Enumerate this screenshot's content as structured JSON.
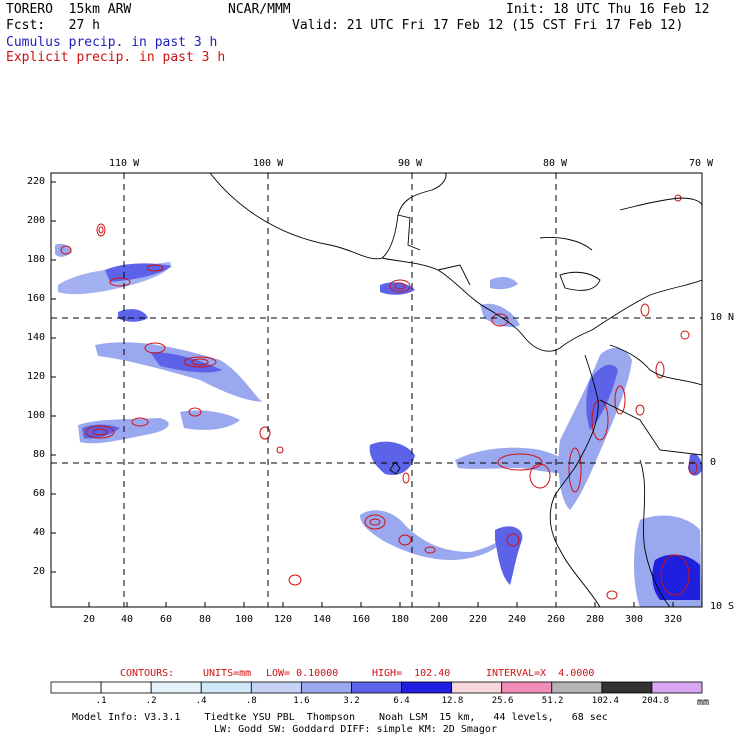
{
  "header": {
    "model": "TORERO  15km ARW",
    "org": "NCAR/MMM",
    "init": "Init: 18 UTC Thu 16 Feb 12",
    "fcst": "Fcst:   27 h",
    "valid": "Valid: 21 UTC Fri 17 Feb 12 (15 CST Fri 17 Feb 12)",
    "legend_cumulus": "Cumulus precip. in past 3 h",
    "legend_explicit": "Explicit precip. in past 3 h"
  },
  "axes": {
    "top_labels": [
      "110 W",
      "100 W",
      "90 W",
      "80 W",
      "70 W"
    ],
    "right_labels": [
      "10 N",
      "0",
      "10 S"
    ],
    "left_ticks": [
      "220",
      "200",
      "180",
      "160",
      "140",
      "120",
      "100",
      "80",
      "60",
      "40",
      "20"
    ],
    "bottom_ticks": [
      "20",
      "40",
      "60",
      "80",
      "100",
      "120",
      "140",
      "160",
      "180",
      "200",
      "220",
      "240",
      "260",
      "280",
      "300",
      "320"
    ]
  },
  "contours": {
    "label": "CONTOURS:",
    "units": "UNITS=mm",
    "low": "LOW= 0.10000",
    "high": "HIGH=  102.40",
    "interval": "INTERVAL=X  4.0000"
  },
  "colorbar": {
    "labels": [
      ".1",
      ".2",
      ".4",
      ".8",
      "1.6",
      "3.2",
      "6.4",
      "12.8",
      "25.6",
      "51.2",
      "102.4",
      "204.8"
    ],
    "unit": "mm",
    "colors": [
      "#ffffff",
      "#ffffff",
      "#e6f2fb",
      "#cfe8f7",
      "#c5d2f5",
      "#9aa8ef",
      "#5d63e8",
      "#1f1fe0",
      "#f7d7dc",
      "#f28cb8",
      "#b4b4b4",
      "#333333",
      "#d9a7f2"
    ]
  },
  "footer": {
    "line1": "Model Info: V3.3.1    Tiedtke YSU PBL  Thompson    Noah LSM  15 km,   44 levels,   68 sec",
    "line2": "LW: Godd SW: Goddard DIFF: simple KM: 2D Smagor"
  }
}
